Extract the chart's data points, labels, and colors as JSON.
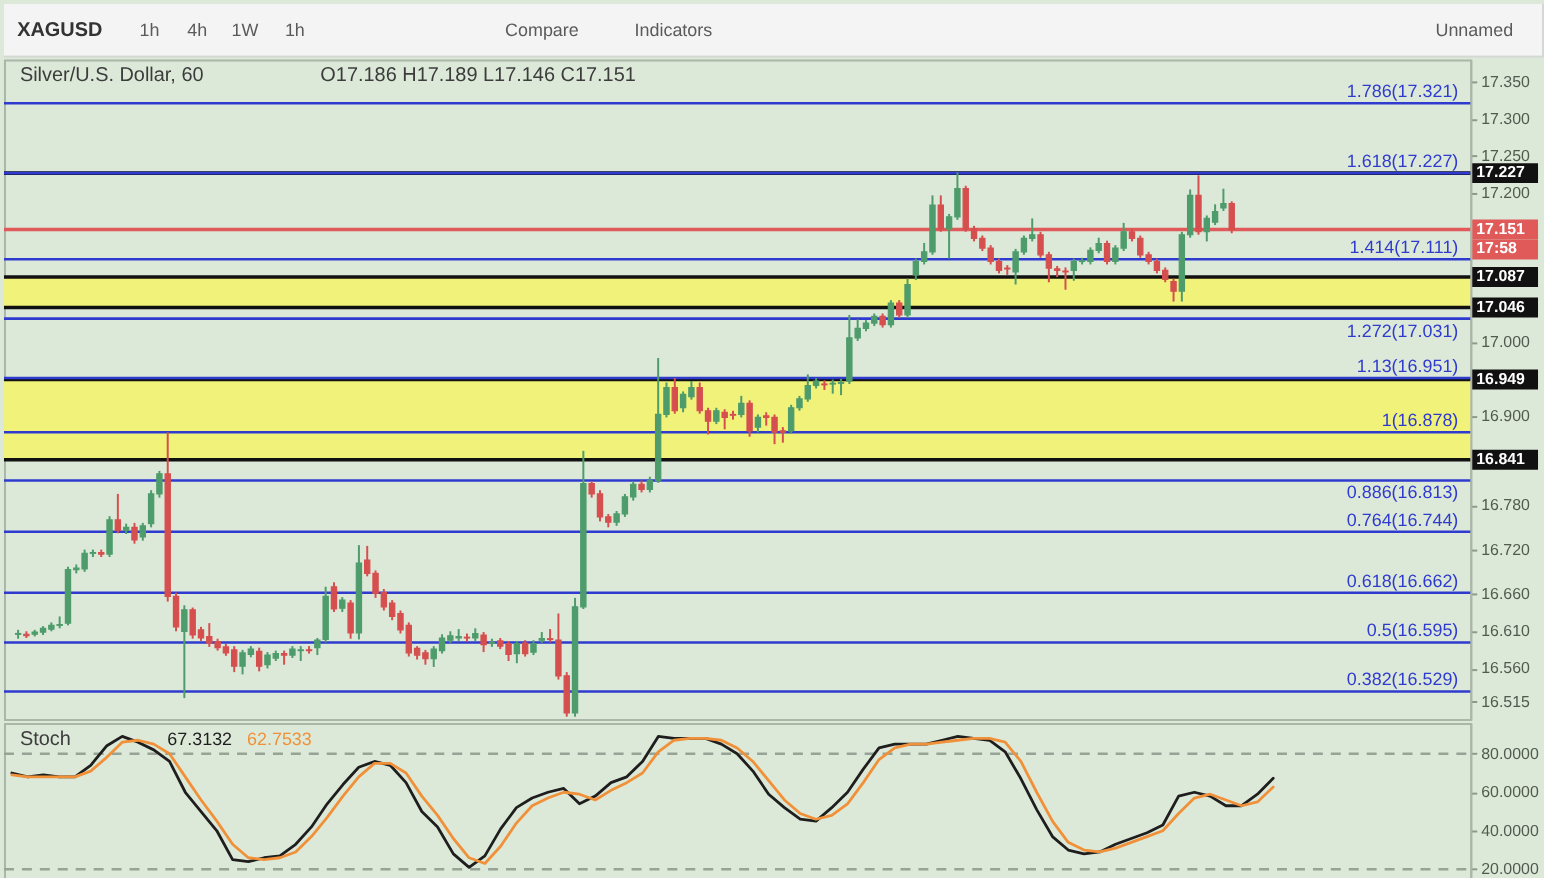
{
  "chart_data": [
    {
      "type": "candlestick",
      "title": "Silver/U.S. Dollar, 60",
      "subtitle": "O17.186 H17.189 L17.146 C17.151",
      "categories": [
        null,
        null,
        null,
        null,
        null,
        null,
        null,
        null,
        null,
        null,
        null,
        null,
        null,
        null,
        null,
        null,
        null,
        null,
        null,
        null,
        null,
        null,
        null,
        null,
        null,
        null,
        null,
        null,
        null,
        null,
        null,
        null,
        null,
        null,
        null,
        null,
        null,
        null,
        null,
        null,
        null,
        null,
        null,
        null,
        null,
        null,
        null,
        null,
        null,
        null,
        null,
        null,
        null,
        null,
        null,
        null,
        null,
        null,
        null,
        null,
        null,
        null,
        null,
        null,
        null,
        null,
        null,
        null,
        null,
        null,
        null,
        null,
        null,
        null,
        null,
        null,
        null,
        null,
        null,
        null,
        null,
        null,
        null,
        null,
        null,
        null,
        null,
        null,
        null,
        null,
        null,
        null,
        null,
        null,
        null,
        null,
        null,
        null,
        null,
        null,
        null,
        null,
        null,
        null,
        null,
        null,
        null,
        null,
        null,
        null,
        null,
        null,
        null,
        null,
        null,
        null,
        null,
        null,
        null,
        null,
        null,
        null,
        null,
        null,
        null,
        null,
        null,
        null,
        null,
        null,
        null,
        null,
        null,
        null,
        null,
        null,
        null,
        null,
        null,
        null,
        null,
        null,
        null,
        null,
        null,
        null,
        null,
        null,
        null,
        null,
        null,
        null,
        null,
        null,
        null,
        null,
        null,
        null,
        null,
        null,
        null,
        null,
        null,
        null,
        null,
        null,
        null,
        null,
        null,
        null,
        null,
        null,
        null,
        null
      ],
      "ohlc": [
        [
          16.606,
          16.612,
          16.6,
          16.607
        ],
        [
          16.606,
          16.61,
          16.601,
          16.604
        ],
        [
          16.606,
          16.612,
          16.603,
          16.609
        ],
        [
          16.609,
          16.617,
          16.605,
          16.614
        ],
        [
          16.613,
          16.622,
          16.61,
          16.618
        ],
        [
          16.618,
          16.63,
          16.614,
          16.619
        ],
        [
          16.621,
          16.697,
          16.618,
          16.693
        ],
        [
          16.693,
          16.7,
          16.688,
          16.695
        ],
        [
          16.694,
          16.72,
          16.69,
          16.715
        ],
        [
          16.715,
          16.72,
          16.71,
          16.716
        ],
        [
          16.716,
          16.72,
          16.71,
          16.714
        ],
        [
          16.714,
          16.765,
          16.71,
          16.76
        ],
        [
          16.76,
          16.795,
          16.742,
          16.746
        ],
        [
          16.746,
          16.755,
          16.741,
          16.75
        ],
        [
          16.75,
          16.756,
          16.728,
          16.733
        ],
        [
          16.737,
          16.756,
          16.732,
          16.752
        ],
        [
          16.755,
          16.8,
          16.75,
          16.795
        ],
        [
          16.795,
          16.826,
          16.79,
          16.822
        ],
        [
          16.822,
          16.878,
          16.65,
          16.657
        ],
        [
          16.657,
          16.662,
          16.61,
          16.616
        ],
        [
          16.61,
          16.645,
          16.52,
          16.639
        ],
        [
          16.639,
          16.642,
          16.6,
          16.605
        ],
        [
          16.612,
          16.616,
          16.597,
          16.601
        ],
        [
          16.603,
          16.621,
          16.589,
          16.594
        ],
        [
          16.596,
          16.6,
          16.584,
          16.588
        ],
        [
          16.589,
          16.593,
          16.577,
          16.581
        ],
        [
          16.585,
          16.59,
          16.555,
          16.563
        ],
        [
          16.563,
          16.585,
          16.552,
          16.581
        ],
        [
          16.579,
          16.59,
          16.575,
          16.586
        ],
        [
          16.583,
          16.588,
          16.556,
          16.563
        ],
        [
          16.565,
          16.582,
          16.56,
          16.578
        ],
        [
          16.574,
          16.584,
          16.57,
          16.58
        ],
        [
          16.58,
          16.584,
          16.565,
          16.578
        ],
        [
          16.578,
          16.59,
          16.574,
          16.586
        ],
        [
          16.584,
          16.59,
          16.57,
          16.585
        ],
        [
          16.585,
          16.59,
          16.58,
          16.584
        ],
        [
          16.588,
          16.601,
          16.578,
          16.598
        ],
        [
          16.599,
          16.67,
          16.595,
          16.657
        ],
        [
          16.67,
          16.676,
          16.636,
          16.64
        ],
        [
          16.641,
          16.656,
          16.636,
          16.652
        ],
        [
          16.648,
          16.652,
          16.6,
          16.608
        ],
        [
          16.608,
          16.726,
          16.599,
          16.702
        ],
        [
          16.706,
          16.725,
          16.684,
          16.688
        ],
        [
          16.688,
          16.692,
          16.655,
          16.661
        ],
        [
          16.662,
          16.667,
          16.638,
          16.643
        ],
        [
          16.648,
          16.652,
          16.625,
          16.63
        ],
        [
          16.634,
          16.638,
          16.607,
          16.612
        ],
        [
          16.618,
          16.622,
          16.576,
          16.581
        ],
        [
          16.587,
          16.59,
          16.572,
          16.578
        ],
        [
          16.581,
          16.585,
          16.565,
          16.573
        ],
        [
          16.573,
          16.59,
          16.562,
          16.586
        ],
        [
          16.584,
          16.606,
          16.58,
          16.601
        ],
        [
          16.598,
          16.61,
          16.594,
          16.604
        ],
        [
          16.601,
          16.613,
          16.597,
          16.603
        ],
        [
          16.602,
          16.607,
          16.596,
          16.601
        ],
        [
          16.601,
          16.614,
          16.597,
          16.607
        ],
        [
          16.605,
          16.609,
          16.582,
          16.592
        ],
        [
          16.594,
          16.6,
          16.589,
          16.595
        ],
        [
          16.597,
          16.601,
          16.586,
          16.59
        ],
        [
          16.593,
          16.597,
          16.57,
          16.579
        ],
        [
          16.58,
          16.597,
          16.567,
          16.593
        ],
        [
          16.594,
          16.598,
          16.576,
          16.58
        ],
        [
          16.582,
          16.598,
          16.578,
          16.593
        ],
        [
          16.598,
          16.609,
          16.594,
          16.6
        ],
        [
          16.6,
          16.613,
          16.595,
          16.599
        ],
        [
          16.598,
          16.634,
          16.545,
          16.55
        ],
        [
          16.55,
          16.555,
          16.495,
          16.5
        ],
        [
          16.5,
          16.655,
          16.495,
          16.643
        ],
        [
          16.643,
          16.853,
          16.64,
          16.809
        ],
        [
          16.809,
          16.812,
          16.79,
          16.795
        ],
        [
          16.795,
          16.8,
          16.758,
          16.764
        ],
        [
          16.764,
          16.768,
          16.75,
          16.757
        ],
        [
          16.757,
          16.772,
          16.752,
          16.768
        ],
        [
          16.768,
          16.795,
          16.764,
          16.791
        ],
        [
          16.791,
          16.812,
          16.786,
          16.808
        ],
        [
          16.808,
          16.813,
          16.797,
          16.801
        ],
        [
          16.801,
          16.818,
          16.797,
          16.813
        ],
        [
          16.813,
          16.978,
          16.81,
          16.902
        ],
        [
          16.902,
          16.945,
          16.898,
          16.938
        ],
        [
          16.938,
          16.951,
          16.903,
          16.907
        ],
        [
          16.911,
          16.933,
          16.905,
          16.929
        ],
        [
          16.926,
          16.947,
          16.922,
          16.938
        ],
        [
          16.938,
          16.945,
          16.903,
          16.907
        ],
        [
          16.907,
          16.911,
          16.875,
          16.893
        ],
        [
          16.893,
          16.911,
          16.889,
          16.907
        ],
        [
          16.905,
          16.909,
          16.882,
          16.898
        ],
        [
          16.902,
          16.907,
          16.895,
          16.901
        ],
        [
          16.902,
          16.927,
          16.898,
          16.917
        ],
        [
          16.917,
          16.921,
          16.872,
          16.88
        ],
        [
          16.885,
          16.902,
          16.878,
          16.898
        ],
        [
          16.9,
          16.905,
          16.887,
          16.898
        ],
        [
          16.898,
          16.902,
          16.862,
          16.878
        ],
        [
          16.88,
          16.885,
          16.864,
          16.878
        ],
        [
          16.88,
          16.915,
          16.876,
          16.911
        ],
        [
          16.911,
          16.927,
          16.907,
          16.923
        ],
        [
          16.923,
          16.956,
          16.919,
          16.941
        ],
        [
          16.941,
          16.951,
          16.937,
          16.947
        ],
        [
          16.943,
          16.948,
          16.935,
          16.942
        ],
        [
          16.943,
          16.949,
          16.93,
          16.944
        ],
        [
          16.944,
          16.95,
          16.928,
          16.945
        ],
        [
          16.947,
          17.036,
          16.943,
          17.005
        ],
        [
          17.005,
          17.03,
          17.001,
          17.018
        ],
        [
          17.018,
          17.029,
          17.014,
          17.025
        ],
        [
          17.025,
          17.038,
          17.021,
          17.034
        ],
        [
          17.034,
          17.038,
          17.019,
          17.023
        ],
        [
          17.023,
          17.056,
          17.019,
          17.052
        ],
        [
          17.052,
          17.056,
          17.032,
          17.036
        ],
        [
          17.036,
          17.085,
          17.032,
          17.077
        ],
        [
          17.09,
          17.112,
          17.083,
          17.108
        ],
        [
          17.108,
          17.133,
          17.104,
          17.121
        ],
        [
          17.121,
          17.197,
          17.117,
          17.184
        ],
        [
          17.184,
          17.197,
          17.148,
          17.152
        ],
        [
          17.152,
          17.172,
          17.112,
          17.168
        ],
        [
          17.168,
          17.228,
          17.164,
          17.206
        ],
        [
          17.206,
          17.21,
          17.148,
          17.152
        ],
        [
          17.152,
          17.156,
          17.135,
          17.139
        ],
        [
          17.139,
          17.143,
          17.122,
          17.126
        ],
        [
          17.126,
          17.13,
          17.104,
          17.108
        ],
        [
          17.108,
          17.112,
          17.092,
          17.096
        ],
        [
          17.099,
          17.103,
          17.09,
          17.098
        ],
        [
          17.094,
          17.125,
          17.077,
          17.121
        ],
        [
          17.121,
          17.143,
          17.117,
          17.139
        ],
        [
          17.139,
          17.166,
          17.135,
          17.144
        ],
        [
          17.144,
          17.148,
          17.113,
          17.117
        ],
        [
          17.117,
          17.121,
          17.08,
          17.099
        ],
        [
          17.098,
          17.102,
          17.087,
          17.096
        ],
        [
          17.095,
          17.1,
          17.07,
          17.094
        ],
        [
          17.096,
          17.112,
          17.082,
          17.108
        ],
        [
          17.108,
          17.113,
          17.104,
          17.109
        ],
        [
          17.108,
          17.127,
          17.104,
          17.123
        ],
        [
          17.123,
          17.14,
          17.119,
          17.132
        ],
        [
          17.132,
          17.136,
          17.104,
          17.108
        ],
        [
          17.108,
          17.13,
          17.104,
          17.126
        ],
        [
          17.126,
          17.16,
          17.122,
          17.148
        ],
        [
          17.148,
          17.152,
          17.135,
          17.139
        ],
        [
          17.139,
          17.143,
          17.113,
          17.117
        ],
        [
          17.117,
          17.121,
          17.104,
          17.108
        ],
        [
          17.108,
          17.112,
          17.092,
          17.096
        ],
        [
          17.096,
          17.1,
          17.08,
          17.084
        ],
        [
          17.081,
          17.085,
          17.054,
          17.068
        ],
        [
          17.068,
          17.148,
          17.054,
          17.144
        ],
        [
          17.144,
          17.205,
          17.14,
          17.197
        ],
        [
          17.197,
          17.224,
          17.144,
          17.148
        ],
        [
          17.148,
          17.17,
          17.135,
          17.166
        ],
        [
          17.161,
          17.185,
          17.157,
          17.175
        ],
        [
          17.18,
          17.206,
          17.176,
          17.186
        ],
        [
          17.186,
          17.189,
          17.146,
          17.151
        ],
        null,
        null,
        null,
        null,
        null,
        null,
        null,
        null,
        null,
        null,
        null,
        null,
        null,
        null,
        null,
        null,
        null,
        null,
        null,
        null,
        null,
        null,
        null,
        null,
        null,
        null,
        null
      ],
      "colors": [
        "#4e9c6c",
        "#d64f4f",
        "#4e9c6c",
        "#4e9c6c",
        "#4e9c6c",
        "#4e9c6c",
        "#4e9c6c",
        "#4e9c6c",
        "#4e9c6c",
        "#4e9c6c",
        "#d64f4f",
        "#4e9c6c",
        "#d64f4f",
        "#4e9c6c",
        "#d64f4f",
        "#4e9c6c",
        "#4e9c6c",
        "#4e9c6c",
        "#d64f4f",
        "#d64f4f",
        "#4e9c6c",
        "#d64f4f",
        "#d64f4f",
        "#d64f4f",
        "#d64f4f",
        "#d64f4f",
        "#d64f4f",
        "#4e9c6c",
        "#4e9c6c",
        "#d64f4f",
        "#4e9c6c",
        "#4e9c6c",
        "#d64f4f",
        "#4e9c6c",
        "#4e9c6c",
        "#d64f4f",
        "#4e9c6c",
        "#4e9c6c",
        "#d64f4f",
        "#4e9c6c",
        "#d64f4f",
        "#4e9c6c",
        "#d64f4f",
        "#d64f4f",
        "#d64f4f",
        "#d64f4f",
        "#d64f4f",
        "#d64f4f",
        "#d64f4f",
        "#d64f4f",
        "#4e9c6c",
        "#4e9c6c",
        "#4e9c6c",
        "#4e9c6c",
        "#d64f4f",
        "#4e9c6c",
        "#d64f4f",
        "#4e9c6c",
        "#d64f4f",
        "#d64f4f",
        "#4e9c6c",
        "#d64f4f",
        "#4e9c6c",
        "#4e9c6c",
        "#d64f4f",
        "#d64f4f",
        "#d64f4f",
        "#4e9c6c",
        "#4e9c6c",
        "#d64f4f",
        "#d64f4f",
        "#d64f4f",
        "#4e9c6c",
        "#4e9c6c",
        "#4e9c6c",
        "#d64f4f",
        "#4e9c6c",
        "#4e9c6c",
        "#4e9c6c",
        "#d64f4f",
        "#4e9c6c",
        "#4e9c6c",
        "#d64f4f",
        "#d64f4f",
        "#4e9c6c",
        "#d64f4f",
        "#d64f4f",
        "#4e9c6c",
        "#d64f4f",
        "#4e9c6c",
        "#d64f4f",
        "#d64f4f",
        "#d64f4f",
        "#4e9c6c",
        "#4e9c6c",
        "#4e9c6c",
        "#4e9c6c",
        "#d64f4f",
        "#4e9c6c",
        "#4e9c6c",
        "#4e9c6c",
        "#4e9c6c",
        "#4e9c6c",
        "#4e9c6c",
        "#d64f4f",
        "#4e9c6c",
        "#d64f4f",
        "#4e9c6c",
        "#4e9c6c",
        "#4e9c6c",
        "#4e9c6c",
        "#d64f4f",
        "#4e9c6c",
        "#4e9c6c",
        "#d64f4f",
        "#d64f4f",
        "#d64f4f",
        "#d64f4f",
        "#d64f4f",
        "#d64f4f",
        "#4e9c6c",
        "#4e9c6c",
        "#4e9c6c",
        "#d64f4f",
        "#d64f4f",
        "#d64f4f",
        "#d64f4f",
        "#4e9c6c",
        "#4e9c6c",
        "#4e9c6c",
        "#4e9c6c",
        "#d64f4f",
        "#4e9c6c",
        "#4e9c6c",
        "#d64f4f",
        "#d64f4f",
        "#d64f4f",
        "#d64f4f",
        "#d64f4f",
        "#d64f4f",
        "#4e9c6c",
        "#4e9c6c",
        "#d64f4f",
        "#4e9c6c",
        "#4e9c6c",
        "#4e9c6c",
        "#d64f4f",
        null,
        null,
        null,
        null,
        null,
        null,
        null,
        null,
        null,
        null,
        null,
        null,
        null,
        null,
        null,
        null,
        null,
        null,
        null,
        null,
        null,
        null,
        null,
        null,
        null,
        null,
        null
      ],
      "ylim": [
        16.492,
        17.38
      ],
      "yticks": [
        {
          "value": 17.35,
          "label": "17.350"
        },
        {
          "value": 17.3,
          "label": "17.300"
        },
        {
          "value": 17.25,
          "label": "17.250"
        },
        {
          "value": 17.2,
          "label": "17.200"
        },
        {
          "value": 17.0,
          "label": "17.000"
        },
        {
          "value": 16.9,
          "label": "16.900"
        },
        {
          "value": 16.78,
          "label": "16.780"
        },
        {
          "value": 16.72,
          "label": "16.720"
        },
        {
          "value": 16.66,
          "label": "16.660"
        },
        {
          "value": 16.61,
          "label": "16.610"
        },
        {
          "value": 16.56,
          "label": "16.560"
        },
        16.515
      ],
      "tick_labels": "y",
      "grid": false,
      "bands": [
        {
          "axis": "y",
          "from": 17.046,
          "to": 17.087,
          "color": "#f1f27a"
        },
        {
          "axis": "y",
          "from": 16.841,
          "to": 16.949,
          "color": "#f1f27a"
        }
      ],
      "ref_lines": [
        {
          "axis": "y",
          "value": 17.227,
          "label": "17.227",
          "color": "#111111"
        },
        {
          "axis": "y",
          "value": 17.151,
          "label": "17.151\n17:58",
          "color": "#e05a5a"
        },
        {
          "axis": "y",
          "value": 17.087,
          "label": "17.087",
          "color": "#111111"
        },
        {
          "axis": "y",
          "value": 17.046,
          "label": "17.046",
          "color": "#111111"
        },
        {
          "axis": "y",
          "value": 16.949,
          "label": "16.949",
          "color": "#111111"
        },
        {
          "axis": "y",
          "value": 16.841,
          "label": "16.841",
          "color": "#111111"
        },
        {
          "axis": "y",
          "value": 17.321,
          "color": "#2f3bcf"
        },
        {
          "axis": "y",
          "value": 17.227,
          "color": "#2f3bcf"
        },
        {
          "axis": "y",
          "value": 17.111,
          "color": "#2f3bcf"
        },
        {
          "axis": "y",
          "value": 17.031,
          "color": "#2f3bcf"
        },
        {
          "axis": "y",
          "value": 16.951,
          "color": "#2f3bcf"
        },
        {
          "axis": "y",
          "value": 16.878,
          "color": "#2f3bcf"
        },
        {
          "axis": "y",
          "value": 16.813,
          "color": "#2f3bcf"
        },
        {
          "axis": "y",
          "value": 16.744,
          "color": "#2f3bcf"
        },
        {
          "axis": "y",
          "value": 16.662,
          "color": "#2f3bcf"
        },
        {
          "axis": "y",
          "value": 16.595,
          "color": "#2f3bcf"
        },
        {
          "axis": "y",
          "value": 16.529,
          "color": "#2f3bcf"
        }
      ],
      "annotations": [
        "XAGUSD",
        "1h",
        "4h",
        "1W",
        "1h",
        "Compare",
        "Indicators",
        "Unnamed",
        {
          "text": "1.786(17.321)",
          "y": 17.321
        },
        {
          "text": "1.618(17.227)",
          "y": 17.227
        },
        {
          "text": "1.414(17.111)",
          "y": 17.111
        },
        {
          "text": "1.272(17.031)",
          "y": 17.031
        },
        {
          "text": "1.13(16.951)",
          "y": 16.951
        },
        {
          "text": "1(16.878)",
          "y": 16.878
        },
        {
          "text": "0.886(16.813)",
          "y": 16.813
        },
        {
          "text": "0.764(16.744)",
          "y": 16.744
        },
        {
          "text": "0.618(16.662)",
          "y": 16.662
        },
        {
          "text": "0.5(16.595)",
          "y": 16.595
        },
        {
          "text": "0.382(16.529)",
          "y": 16.529
        }
      ]
    },
    {
      "type": "line",
      "title": "Stoch",
      "categories": [
        null,
        null,
        null,
        null,
        null,
        null,
        null,
        null,
        null,
        null,
        null,
        null,
        null,
        null,
        null,
        null,
        null,
        null,
        null,
        null,
        null,
        null,
        null,
        null,
        null,
        null,
        null,
        null,
        null,
        null,
        null,
        null,
        null,
        null,
        null,
        null,
        null,
        null,
        null,
        null,
        null,
        null,
        null,
        null,
        null,
        null,
        null,
        null,
        null,
        null,
        null,
        null,
        null,
        null,
        null,
        null,
        null,
        null,
        null,
        null,
        null,
        null,
        null,
        null,
        null,
        null,
        null,
        null,
        null,
        null,
        null,
        null,
        null,
        null,
        null,
        null,
        null,
        null,
        null,
        null,
        null,
        null,
        null,
        null,
        null,
        null,
        null,
        null,
        null,
        null,
        null,
        null,
        null
      ],
      "series": [
        {
          "color": "#1e1e1e",
          "values": [
            70,
            68,
            69,
            68,
            68,
            74,
            84,
            89,
            86,
            82,
            76,
            60,
            50,
            40,
            25,
            24,
            26,
            27,
            33,
            42,
            54,
            64,
            73,
            76,
            74,
            65,
            50,
            42,
            28,
            21,
            27,
            41,
            52,
            57,
            60,
            62,
            54,
            58,
            65,
            68,
            76,
            89,
            88,
            88,
            88,
            85,
            80,
            71,
            59,
            52,
            46,
            45,
            52,
            60,
            72,
            83,
            85,
            85,
            85,
            87,
            89,
            88,
            87,
            81,
            67,
            51,
            37,
            30,
            28,
            29,
            33,
            36,
            39,
            43,
            58,
            60,
            58,
            53,
            53,
            59,
            67.3132,
            null,
            null,
            null,
            null,
            null,
            null,
            null,
            null,
            null,
            null,
            null,
            null
          ]
        },
        {
          "color": "#f0913a",
          "values": [
            69,
            68,
            68,
            68,
            68,
            71,
            78,
            86,
            87,
            85,
            80,
            68,
            56,
            45,
            33,
            26,
            25,
            26,
            29,
            37,
            47,
            58,
            68,
            75,
            75,
            70,
            58,
            48,
            36,
            26,
            23,
            32,
            44,
            53,
            57,
            60,
            59,
            56,
            61,
            65,
            70,
            81,
            87,
            88,
            88,
            87,
            83,
            76,
            66,
            56,
            49,
            46,
            48,
            54,
            65,
            77,
            83,
            85,
            85,
            86,
            87,
            88,
            88,
            86,
            76,
            60,
            45,
            34,
            30,
            29,
            31,
            34,
            37,
            40,
            49,
            57,
            59,
            56,
            53,
            55,
            62.7533,
            null,
            null,
            null,
            null,
            null,
            null,
            null,
            null,
            null,
            null,
            null,
            null
          ]
        }
      ],
      "ylim": [
        14.3,
        96
      ],
      "yticks": [
        {
          "value": 80,
          "label": "80.0000"
        },
        {
          "value": 60,
          "label": "60.0000"
        },
        {
          "value": 40,
          "label": "40.0000"
        },
        {
          "value": 20,
          "label": "20.0000"
        }
      ],
      "tick_labels": "y",
      "grid": false,
      "ref_lines": [
        {
          "axis": "y",
          "value": 80,
          "color": "#96a396",
          "line_style": "dashed"
        },
        {
          "axis": "y",
          "value": 20,
          "color": "#96a396",
          "line_style": "dashed"
        }
      ],
      "annotations": [
        "67.3132",
        "62.7533"
      ]
    }
  ]
}
